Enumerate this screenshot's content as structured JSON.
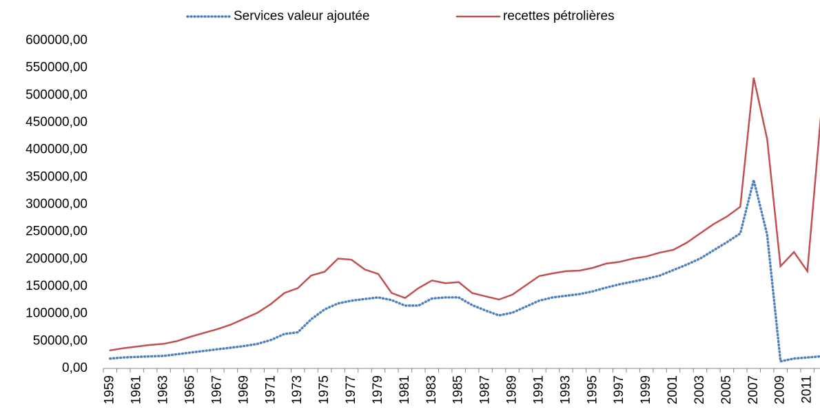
{
  "chart_data": {
    "type": "line",
    "categories": [
      "1959",
      null,
      "1961",
      null,
      "1963",
      null,
      "1965",
      null,
      "1967",
      null,
      "1969",
      null,
      "1971",
      null,
      "1973",
      null,
      "1975",
      null,
      "1977",
      null,
      "1979",
      null,
      "1981",
      null,
      "1983",
      null,
      "1985",
      null,
      "1987",
      null,
      "1989",
      null,
      "1991",
      null,
      "1993",
      null,
      "1995",
      null,
      "1997",
      null,
      "1999",
      null,
      "2001",
      null,
      "2003",
      null,
      "2005",
      null,
      "2007",
      null,
      "2009",
      null,
      "2011",
      null
    ],
    "series": [
      {
        "name": "Services valeur ajoutée",
        "color": "#4f81bd",
        "dash": "dotted",
        "values": [
          18000,
          20000,
          21000,
          22000,
          23000,
          26000,
          29000,
          32000,
          35000,
          38000,
          41000,
          45000,
          52000,
          63000,
          66000,
          90000,
          108000,
          119000,
          124000,
          127000,
          130000,
          125000,
          115000,
          115000,
          128000,
          130000,
          130000,
          116000,
          106000,
          97000,
          102000,
          113000,
          124000,
          130000,
          133000,
          136000,
          141000,
          148000,
          154000,
          159000,
          164000,
          170000,
          180000,
          190000,
          201000,
          216000,
          231000,
          247000,
          345000,
          245000,
          13000,
          18000,
          20000,
          22000
        ]
      },
      {
        "name": "recettes pétrolières",
        "color": "#c0504d",
        "dash": "solid",
        "values": [
          33000,
          37000,
          40000,
          43000,
          45000,
          50000,
          58000,
          65000,
          72000,
          80000,
          91000,
          102000,
          118000,
          138000,
          147000,
          170000,
          177000,
          201000,
          199000,
          181000,
          173000,
          138000,
          129000,
          147000,
          161000,
          156000,
          158000,
          138000,
          132000,
          126000,
          135000,
          152000,
          169000,
          174000,
          178000,
          179000,
          184000,
          192000,
          195000,
          201000,
          205000,
          212000,
          217000,
          230000,
          247000,
          264000,
          278000,
          296000,
          532000,
          420000,
          187000,
          213000,
          178000,
          460000
        ]
      }
    ],
    "ylim": [
      0,
      600000
    ],
    "yticks": [
      {
        "value": 0,
        "label": "0,00"
      },
      {
        "value": 50000,
        "label": "50000,00"
      },
      {
        "value": 100000,
        "label": "100000,00"
      },
      {
        "value": 150000,
        "label": "150000,00"
      },
      {
        "value": 200000,
        "label": "200000,00"
      },
      {
        "value": 250000,
        "label": "250000,00"
      },
      {
        "value": 300000,
        "label": "300000,00"
      },
      {
        "value": 350000,
        "label": "350000,00"
      },
      {
        "value": 400000,
        "label": "400000,00"
      },
      {
        "value": 450000,
        "label": "450000,00"
      },
      {
        "value": 500000,
        "label": "500000,00"
      },
      {
        "value": 550000,
        "label": "550000,00"
      },
      {
        "value": 600000,
        "label": "600000,00"
      }
    ],
    "legend": "top",
    "grid": false
  }
}
